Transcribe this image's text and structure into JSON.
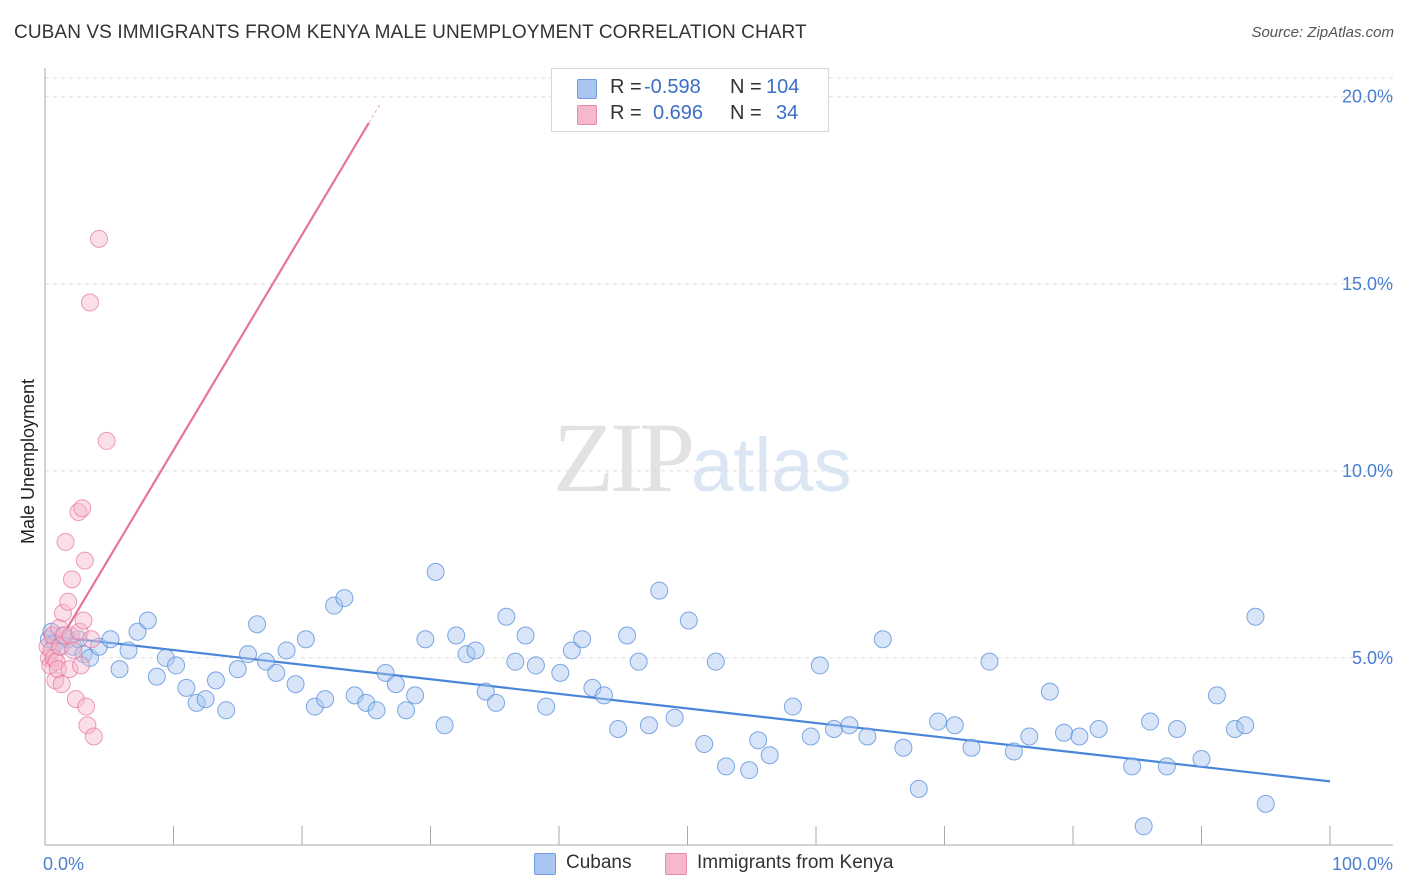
{
  "header": {
    "title": "CUBAN VS IMMIGRANTS FROM KENYA MALE UNEMPLOYMENT CORRELATION CHART",
    "source": "Source: ZipAtlas.com"
  },
  "watermark": {
    "zip": "ZIP",
    "atlas": "atlas"
  },
  "legend": {
    "rows": [
      {
        "r_label": "R =",
        "r_value": "-0.598",
        "n_label": "N =",
        "n_value": "104",
        "color": "#a8c6f0"
      },
      {
        "r_label": "R =",
        "r_value": "0.696",
        "n_label": "N =",
        "n_value": "34",
        "color": "#f5b8cc"
      }
    ]
  },
  "bottom_legend": {
    "items": [
      {
        "label": "Cubans",
        "color": "#a8c6f0"
      },
      {
        "label": "Immigrants from Kenya",
        "color": "#f5b8cc"
      }
    ]
  },
  "chart_data": {
    "type": "scatter",
    "title": "CUBAN VS IMMIGRANTS FROM KENYA MALE UNEMPLOYMENT CORRELATION CHART",
    "xlabel": "",
    "ylabel": "Male Unemployment",
    "xlim": [
      0,
      100
    ],
    "ylim": [
      0,
      20.5
    ],
    "x_tick_labels": [
      "0.0%",
      "100.0%"
    ],
    "y_ticks": [
      5,
      10,
      15,
      20
    ],
    "y_tick_labels": [
      "5.0%",
      "10.0%",
      "15.0%",
      "20.0%"
    ],
    "grid": "horizontal dashed",
    "legend_position": "top-center",
    "colors": {
      "cubans": "#4a86d8",
      "cubans_fill": "#a8c6f0",
      "kenya": "#e8739a",
      "kenya_fill": "#f5b8cc"
    },
    "series": [
      {
        "name": "Cubans",
        "color": "#4a86d8",
        "x": [
          0.3,
          0.5,
          0.8,
          1.1,
          1.4,
          1.8,
          2.2,
          2.6,
          3.0,
          3.5,
          4.2,
          5.1,
          5.8,
          6.5,
          7.2,
          8.0,
          8.7,
          9.4,
          10.2,
          11.0,
          11.8,
          12.5,
          13.3,
          14.1,
          15.0,
          15.8,
          16.5,
          17.2,
          18.0,
          18.8,
          19.5,
          20.3,
          21.0,
          21.8,
          22.5,
          23.3,
          24.1,
          25.0,
          25.8,
          26.5,
          27.3,
          28.1,
          28.8,
          29.6,
          30.4,
          31.1,
          32.0,
          32.8,
          33.5,
          34.3,
          35.1,
          35.9,
          36.6,
          37.4,
          38.2,
          39.0,
          40.1,
          41.0,
          41.8,
          42.6,
          43.5,
          44.6,
          45.3,
          46.2,
          47.0,
          47.8,
          49.0,
          50.1,
          51.3,
          52.2,
          53.0,
          54.8,
          55.5,
          56.4,
          58.2,
          59.6,
          60.3,
          61.4,
          62.6,
          64.0,
          65.2,
          66.8,
          68.0,
          69.5,
          70.8,
          72.1,
          73.5,
          75.4,
          76.6,
          78.2,
          79.3,
          80.5,
          82.0,
          84.6,
          85.5,
          86.0,
          87.3,
          88.1,
          90.0,
          91.2,
          92.6,
          93.4,
          94.2,
          95.0
        ],
        "y": [
          5.5,
          5.7,
          5.4,
          5.3,
          5.6,
          5.5,
          5.3,
          5.5,
          5.1,
          5.0,
          5.3,
          5.5,
          4.7,
          5.2,
          5.7,
          6.0,
          4.5,
          5.0,
          4.8,
          4.2,
          3.8,
          3.9,
          4.4,
          3.6,
          4.7,
          5.1,
          5.9,
          4.9,
          4.6,
          5.2,
          4.3,
          5.5,
          3.7,
          3.9,
          6.4,
          6.6,
          4.0,
          3.8,
          3.6,
          4.6,
          4.3,
          3.6,
          4.0,
          5.5,
          7.3,
          3.2,
          5.6,
          5.1,
          5.2,
          4.1,
          3.8,
          6.1,
          4.9,
          5.6,
          4.8,
          3.7,
          4.6,
          5.2,
          5.5,
          4.2,
          4.0,
          3.1,
          5.6,
          4.9,
          3.2,
          6.8,
          3.4,
          6.0,
          2.7,
          4.9,
          2.1,
          2.0,
          2.8,
          2.4,
          3.7,
          2.9,
          4.8,
          3.1,
          3.2,
          2.9,
          5.5,
          2.6,
          1.5,
          3.3,
          3.2,
          2.6,
          4.9,
          2.5,
          2.9,
          4.1,
          3.0,
          2.9,
          3.1,
          2.1,
          0.5,
          3.3,
          2.1,
          3.1,
          2.3,
          4.0,
          3.1,
          3.2,
          6.1,
          1.1
        ]
      },
      {
        "name": "Immigrants from Kenya",
        "color": "#e8739a",
        "x": [
          0.2,
          0.3,
          0.4,
          0.5,
          0.6,
          0.7,
          0.8,
          0.9,
          1.0,
          1.1,
          1.2,
          1.3,
          1.4,
          1.5,
          1.6,
          1.8,
          1.9,
          2.0,
          2.1,
          2.2,
          2.4,
          2.6,
          2.7,
          2.8,
          2.9,
          3.0,
          3.1,
          3.2,
          3.3,
          3.5,
          3.6,
          3.8,
          4.2,
          4.8
        ],
        "y": [
          5.3,
          5.0,
          4.8,
          5.2,
          5.6,
          5.0,
          4.4,
          4.9,
          4.7,
          5.8,
          5.3,
          4.3,
          6.2,
          5.6,
          8.1,
          6.5,
          4.7,
          5.6,
          7.1,
          5.2,
          3.9,
          8.9,
          5.7,
          4.8,
          9.0,
          6.0,
          7.6,
          3.7,
          3.2,
          14.5,
          5.5,
          2.9,
          16.2,
          10.8
        ]
      }
    ],
    "trendlines": [
      {
        "series": "Cubans",
        "x": [
          0,
          100
        ],
        "y": [
          5.6,
          1.7
        ]
      },
      {
        "series": "Immigrants from Kenya",
        "x": [
          0,
          25.2
        ],
        "y": [
          4.8,
          19.3
        ]
      }
    ]
  }
}
